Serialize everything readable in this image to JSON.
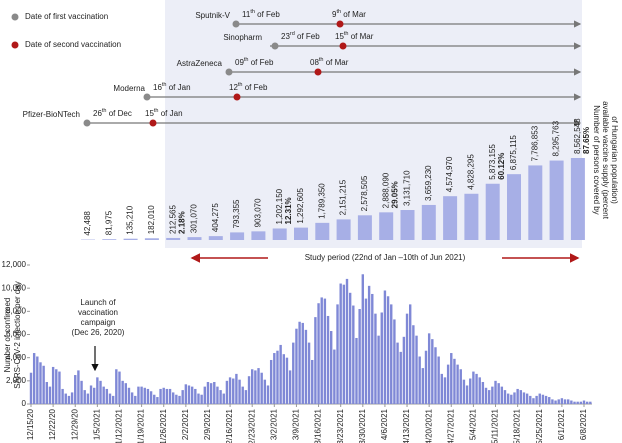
{
  "timeline": {
    "legend": {
      "first": "Date of first vaccination",
      "second": "Date of second vaccination"
    },
    "vaccines": [
      {
        "name": "Sputnik-V",
        "first": "11th of Feb",
        "second": "9th of Mar"
      },
      {
        "name": "Sinopharm",
        "first": "23rd of Feb",
        "second": "15th of Mar"
      },
      {
        "name": "AstraZeneca",
        "first": "09th of Feb",
        "second": "08th of Mar"
      },
      {
        "name": "Moderna",
        "first": "16th of Jan",
        "second": "12th of Feb"
      },
      {
        "name": "Pfizer-BioNTech",
        "first": "26th of Dec",
        "second": "15th of Jan"
      }
    ]
  },
  "chart_data": [
    {
      "type": "bar",
      "y_label": [
        "Number of persons covered by",
        "available vaccine supply (percent",
        "of Hungarian population)"
      ],
      "color": "#a7afe6",
      "values": [
        42488,
        81975,
        135210,
        182010,
        212565,
        301070,
        404275,
        793355,
        903070,
        1202150,
        1292605,
        1789350,
        2151215,
        2578505,
        2888090,
        3131710,
        3659230,
        4574970,
        4828295,
        5873155,
        6875115,
        7786853,
        8295763,
        8562548
      ],
      "value_labels": [
        "42,488",
        "81,975",
        "135,210",
        "182,010",
        "212,565",
        "301,070",
        "404,275",
        "793,355",
        "903,070",
        "1,202,150",
        "1,292,605",
        "1,789,350",
        "2,151,215",
        "2,578,505",
        "2,888,090",
        "3,131,710",
        "3,659,230",
        "4,574,970",
        "4,828,295",
        "5,873,155",
        "6,875,115",
        "7,786,853",
        "8,295,763",
        "8,562,548"
      ],
      "percent_labels": [
        null,
        null,
        null,
        null,
        "2.18%",
        null,
        null,
        null,
        null,
        "12.31%",
        null,
        null,
        null,
        null,
        "29.05%",
        null,
        null,
        null,
        null,
        "60.12%",
        null,
        null,
        null,
        "87.65%"
      ]
    },
    {
      "type": "bar",
      "y_label": [
        "Number of confirmed",
        "SARS-CoV-2 infection per day"
      ],
      "color": "#7f88d6",
      "launch_annotation": [
        "Launch of",
        "vaccination",
        "campaign",
        "(Dec 26, 2020)"
      ],
      "study_period": "Study period (22nd of Jan –10th of Jun 2021)",
      "ylim": [
        0,
        12000
      ],
      "yticks": [
        0,
        {
          "value": 2000,
          "label": "2,000"
        },
        {
          "value": 4000,
          "label": "4,000"
        },
        {
          "value": 6000,
          "label": "6,000"
        },
        {
          "value": 8000,
          "label": "8,000"
        },
        {
          "value": 10000,
          "label": "10,000"
        },
        {
          "value": 12000,
          "label": "12,000"
        }
      ],
      "categories": [
        "12/15/20",
        null,
        null,
        null,
        null,
        null,
        null,
        "12/22/20",
        null,
        null,
        null,
        null,
        null,
        null,
        "12/29/20",
        null,
        null,
        null,
        null,
        null,
        null,
        "1/5/2021",
        null,
        null,
        null,
        null,
        null,
        null,
        "1/12/2021",
        null,
        null,
        null,
        null,
        null,
        null,
        "1/19/2021",
        null,
        null,
        null,
        null,
        null,
        null,
        "1/26/2021",
        null,
        null,
        null,
        null,
        null,
        null,
        "2/2/2021",
        null,
        null,
        null,
        null,
        null,
        null,
        "2/9/2021",
        null,
        null,
        null,
        null,
        null,
        null,
        "2/16/2021",
        null,
        null,
        null,
        null,
        null,
        null,
        "2/23/2021",
        null,
        null,
        null,
        null,
        null,
        null,
        "3/2/2021",
        null,
        null,
        null,
        null,
        null,
        null,
        "3/9/2021",
        null,
        null,
        null,
        null,
        null,
        null,
        "3/16/2021",
        null,
        null,
        null,
        null,
        null,
        null,
        "3/23/2021",
        null,
        null,
        null,
        null,
        null,
        null,
        "3/30/2021",
        null,
        null,
        null,
        null,
        null,
        null,
        "4/6/2021",
        null,
        null,
        null,
        null,
        null,
        null,
        "4/13/2021",
        null,
        null,
        null,
        null,
        null,
        null,
        "4/20/2021",
        null,
        null,
        null,
        null,
        null,
        null,
        "4/27/2021",
        null,
        null,
        null,
        null,
        null,
        null,
        "5/4/2021",
        null,
        null,
        null,
        null,
        null,
        null,
        "5/11/2021",
        null,
        null,
        null,
        null,
        null,
        null,
        "5/18/2021",
        null,
        null,
        null,
        null,
        null,
        null,
        "5/25/2021",
        null,
        null,
        null,
        null,
        null,
        null,
        "6/1/2021",
        null,
        null,
        null,
        null,
        null,
        null,
        "6/8/2021",
        null,
        null
      ],
      "values": [
        2700,
        4400,
        4100,
        3600,
        3300,
        1900,
        1500,
        3200,
        3000,
        2800,
        1300,
        900,
        700,
        1000,
        2500,
        2900,
        2000,
        1200,
        900,
        1600,
        1400,
        2300,
        2000,
        1500,
        1300,
        900,
        700,
        3000,
        2800,
        2000,
        1800,
        1400,
        1000,
        700,
        1500,
        1500,
        1400,
        1300,
        1100,
        800,
        600,
        1300,
        1400,
        1300,
        1300,
        1000,
        800,
        700,
        1200,
        1700,
        1600,
        1500,
        1300,
        900,
        800,
        1500,
        1900,
        1800,
        1900,
        1500,
        1200,
        900,
        2000,
        2300,
        2200,
        2600,
        2100,
        1500,
        1200,
        2400,
        3000,
        2900,
        3100,
        2700,
        2100,
        1600,
        3800,
        4400,
        4600,
        5100,
        4300,
        4000,
        2900,
        5300,
        6500,
        7100,
        7000,
        6400,
        5300,
        3800,
        7500,
        8700,
        9200,
        9100,
        7600,
        6300,
        4700,
        8600,
        10400,
        10300,
        10800,
        9600,
        8500,
        5700,
        8200,
        11200,
        9100,
        10200,
        9500,
        7800,
        5900,
        7900,
        9800,
        9300,
        8600,
        7300,
        5300,
        4500,
        5800,
        7800,
        8600,
        6800,
        5900,
        4100,
        3100,
        4600,
        6100,
        5600,
        4900,
        4100,
        2600,
        2300,
        3400,
        4400,
        3900,
        3400,
        3000,
        2100,
        1600,
        2200,
        2800,
        2600,
        2300,
        1900,
        1400,
        1200,
        1500,
        2000,
        1800,
        1500,
        1200,
        900,
        800,
        1000,
        1300,
        1200,
        1000,
        900,
        700,
        500,
        700,
        900,
        800,
        700,
        600,
        400,
        300,
        400,
        500,
        400,
        400,
        300,
        200,
        200,
        200,
        300,
        200,
        200
      ]
    }
  ]
}
